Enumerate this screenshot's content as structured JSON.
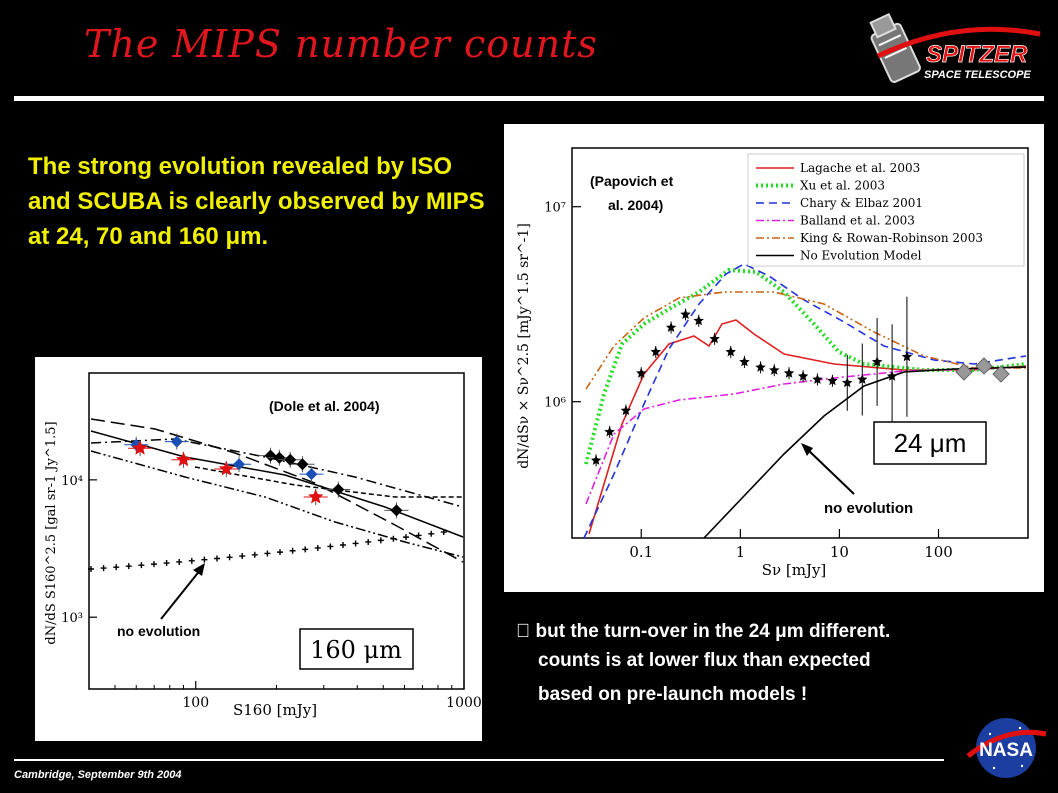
{
  "slide": {
    "title": "The MIPS number counts",
    "body_text": "The strong evolution revealed by ISO and SCUBA is clearly observed by MIPS at 24, 70 and 160 μm.",
    "note_line1": " but the turn-over in the 24 μm different.",
    "note_line2": "counts is at lower flux than expected",
    "note_line3": "based on pre-launch models !",
    "footer": "Cambridge, September 9th 2004",
    "colors": {
      "title": "#e0161e",
      "body_text": "#f0f000",
      "background": "#000000"
    },
    "logos": [
      "spitzer-space-telescope-logo",
      "nasa-logo"
    ]
  },
  "chart_data": [
    {
      "type": "scatter",
      "citation": "(Dole et al. 2004)",
      "xlabel": "S160 [mJy]",
      "ylabel": "dN/dS S160^2.5 [gal sr-1 Jy^1.5]",
      "band_label": "160 μm",
      "annotation": "no evolution",
      "x_scale": "log",
      "y_scale": "log",
      "xlim": [
        40,
        1000
      ],
      "ylim": [
        300,
        60000
      ],
      "x_ticks": [
        "100",
        "1000"
      ],
      "y_ticks": [
        "10³",
        "10⁴"
      ],
      "series": [
        {
          "marker": "diamond",
          "color": "#1a4fb5",
          "x": [
            60,
            85,
            145,
            270
          ],
          "y": [
            18000,
            19000,
            13000,
            11000
          ]
        },
        {
          "marker": "star",
          "color": "#e01010",
          "x": [
            62,
            90,
            130,
            280
          ],
          "y": [
            17000,
            14000,
            12000,
            7500
          ]
        },
        {
          "marker": "diamond",
          "color": "#000000",
          "x": [
            190,
            205,
            225,
            250,
            340,
            560
          ],
          "y": [
            15000,
            14500,
            14000,
            13000,
            8500,
            6000
          ]
        }
      ]
    },
    {
      "type": "line",
      "citation": "(Papovich et al. 2004)",
      "xlabel": "Sν [mJy]",
      "ylabel": "dN/dSν × Sν^2.5 [mJy^1.5 sr^-1]",
      "band_label": "24 μm",
      "annotation": "no evolution",
      "x_scale": "log",
      "y_scale": "log",
      "xlim": [
        0.02,
        800
      ],
      "ylim": [
        200000,
        20000000
      ],
      "x_ticks": [
        "0.1",
        "1",
        "10",
        "100"
      ],
      "y_ticks": [
        "10⁶",
        "10⁷"
      ],
      "legend_position": "top-right",
      "series": [
        {
          "name": "Lagache et al. 2003",
          "color": "#e02020",
          "dash": "solid"
        },
        {
          "name": "Xu et al. 2003",
          "color": "#22dd22",
          "dash": "dotted"
        },
        {
          "name": "Chary & Elbaz 2001",
          "color": "#2233dd",
          "dash": "dashed"
        },
        {
          "name": "Balland et al. 2003",
          "color": "#e020e0",
          "dash": "dashdot"
        },
        {
          "name": "King & Rowan-Robinson 2003",
          "color": "#c86414",
          "dash": "dashdot"
        },
        {
          "name": "No Evolution Model",
          "color": "#000000",
          "dash": "solid"
        }
      ],
      "points": {
        "x": [
          0.035,
          0.048,
          0.07,
          0.1,
          0.14,
          0.2,
          0.28,
          0.38,
          0.55,
          0.8,
          1.1,
          1.6,
          2.2,
          3.1,
          4.3,
          6,
          8.5,
          12,
          17,
          24,
          34,
          48
        ],
        "y": [
          500000,
          700000,
          900000,
          1400000,
          1800000,
          2400000,
          2800000,
          2600000,
          2100000,
          1800000,
          1600000,
          1500000,
          1450000,
          1400000,
          1350000,
          1300000,
          1280000,
          1250000,
          1300000,
          1600000,
          1350000,
          1700000
        ]
      }
    }
  ]
}
